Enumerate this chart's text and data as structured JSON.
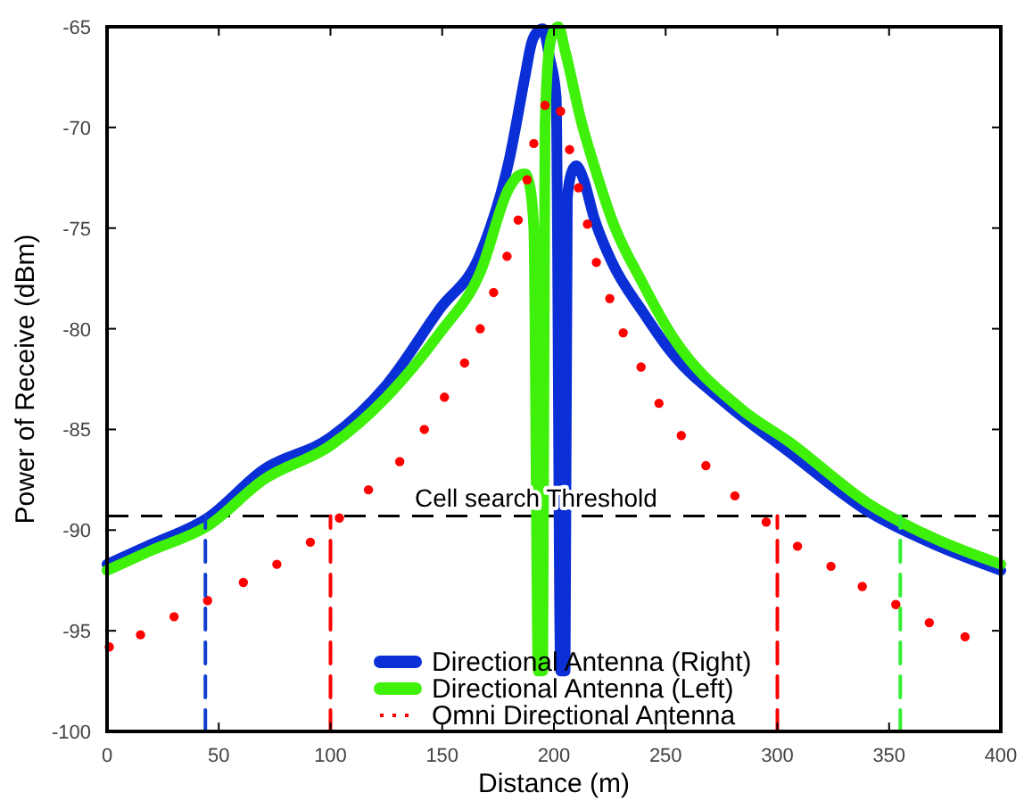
{
  "chart_data": {
    "type": "line",
    "xlabel": "Distance (m)",
    "ylabel": "Power of Receive (dBm)",
    "xlim": [
      0,
      400
    ],
    "xticks": [
      0,
      50,
      100,
      150,
      200,
      250,
      300,
      350,
      400
    ],
    "ylim": [
      -100,
      -65
    ],
    "yticks": [
      -100,
      -95,
      -90,
      -85,
      -80,
      -75,
      -70,
      -65
    ],
    "grid": false,
    "legend": "bottom",
    "series": [
      {
        "name": "Directional Antenna (Right)",
        "color": "#0a2fd6",
        "line_style": "solid",
        "x": [
          0,
          20,
          45,
          70,
          100,
          125,
          149,
          167,
          180,
          187,
          190,
          193,
          195,
          198,
          201,
          203,
          205,
          206,
          208,
          210,
          213,
          218,
          226,
          240,
          252,
          278,
          305,
          341,
          370,
          400
        ],
        "values": [
          -91.7,
          -90.7,
          -89.4,
          -87.0,
          -85.4,
          -82.8,
          -79.0,
          -76.3,
          -71.6,
          -67.5,
          -65.8,
          -65.2,
          -65.1,
          -66.5,
          -68.5,
          -97,
          -97,
          -73.5,
          -72.2,
          -71.9,
          -72.5,
          -74.5,
          -76.7,
          -79.2,
          -81.1,
          -83.8,
          -86.1,
          -89.1,
          -90.7,
          -92.0
        ]
      },
      {
        "name": "Directional Antenna (Left)",
        "color": "#3ff00a",
        "line_style": "solid",
        "x": [
          0,
          20,
          45,
          70,
          100,
          125,
          149,
          167,
          180,
          184,
          187,
          189,
          191,
          193,
          195,
          196,
          198,
          200,
          202,
          205,
          212,
          220,
          226,
          240,
          252,
          284,
          305,
          341,
          370,
          400
        ],
        "values": [
          -92.0,
          -91.0,
          -89.8,
          -87.5,
          -85.8,
          -83.4,
          -80.2,
          -77.2,
          -73.0,
          -72.4,
          -72.3,
          -72.8,
          -75,
          -97,
          -97,
          -70,
          -66,
          -65.2,
          -65.0,
          -66.2,
          -69.6,
          -72.6,
          -74.6,
          -77.8,
          -80.2,
          -84,
          -85.6,
          -88.7,
          -90.4,
          -91.7
        ]
      },
      {
        "name": "Omni Directional Antenna",
        "color": "#ff0000",
        "type": "scatter",
        "marker": "circle",
        "line_style": "dotted",
        "x": [
          1,
          15,
          30,
          45,
          61,
          76,
          91,
          104,
          117,
          131,
          142,
          151,
          160,
          167,
          173,
          179,
          184,
          188,
          191,
          196,
          203,
          207,
          211,
          215,
          219,
          225,
          231,
          239,
          247,
          257,
          268,
          281,
          295,
          309,
          324,
          338,
          353,
          368,
          384
        ],
        "values": [
          -95.8,
          -95.2,
          -94.3,
          -93.5,
          -92.6,
          -91.7,
          -90.6,
          -89.4,
          -88.0,
          -86.6,
          -85.0,
          -83.4,
          -81.7,
          -80.0,
          -78.2,
          -76.4,
          -74.6,
          -72.6,
          -70.8,
          -68.9,
          -69.2,
          -71.1,
          -73.0,
          -74.8,
          -76.7,
          -78.5,
          -80.2,
          -81.9,
          -83.7,
          -85.3,
          -86.8,
          -88.3,
          -89.6,
          -90.8,
          -91.8,
          -92.8,
          -93.7,
          -94.6,
          -95.3
        ]
      },
      {
        "color": "#1040d0",
        "line_style": "dashed",
        "x": [
          44,
          44
        ],
        "values": [
          -100,
          -89.3
        ]
      },
      {
        "color": "#ff0000",
        "line_style": "dashed",
        "x": [
          100,
          100
        ],
        "values": [
          -100,
          -89.3
        ]
      },
      {
        "color": "#ff0000",
        "line_style": "dashed",
        "x": [
          300,
          300
        ],
        "values": [
          -100,
          -89.3
        ]
      },
      {
        "color": "#33ee33",
        "line_style": "dashed",
        "x": [
          355,
          355
        ],
        "values": [
          -100,
          -89.3
        ]
      }
    ],
    "ref_lines": [
      {
        "axis": "y",
        "value": -89.3,
        "label": "Cell search Threshold",
        "color": "#000000",
        "line_style": "dashed"
      }
    ]
  }
}
